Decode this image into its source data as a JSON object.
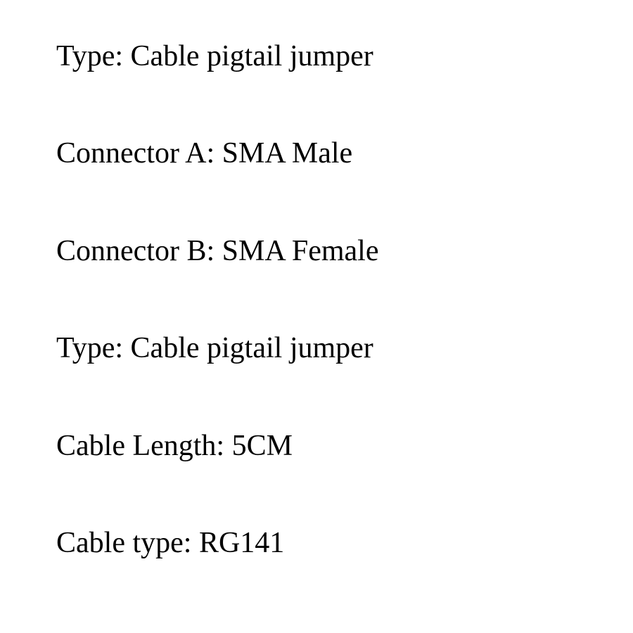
{
  "specs": {
    "lines": [
      {
        "label": "Type",
        "value": "Cable pigtail jumper"
      },
      {
        "label": "Connector A",
        "value": "SMA Male"
      },
      {
        "label": "Connector B",
        "value": "SMA Female"
      },
      {
        "label": "Type",
        "value": "Cable pigtail jumper"
      },
      {
        "label": "Cable Length",
        "value": "5CM"
      },
      {
        "label": "Cable type",
        "value": "RG141"
      }
    ],
    "text_color": "#000000",
    "background_color": "#ffffff",
    "font_size": 42,
    "font_family": "Times New Roman",
    "line_gap": 88
  }
}
